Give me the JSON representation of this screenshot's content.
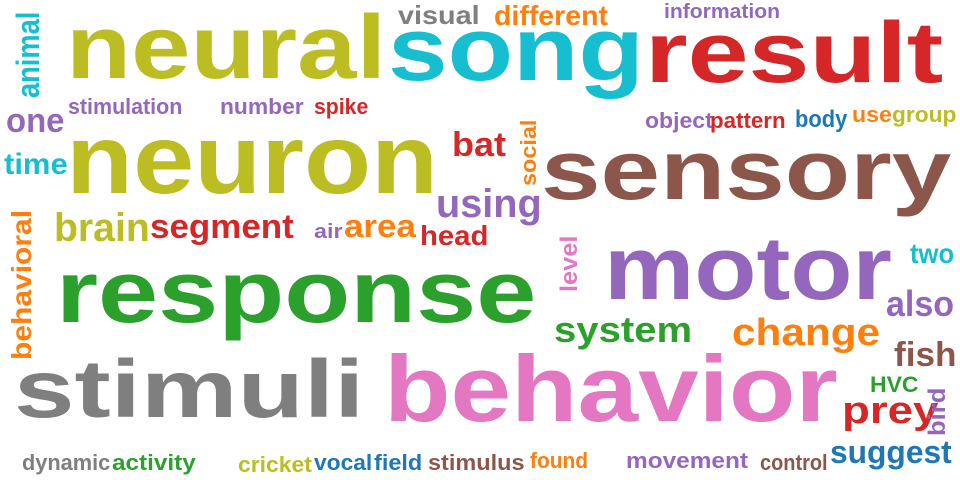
{
  "colors": {
    "olive": "#bcbd22",
    "cyan": "#17becf",
    "red": "#d62728",
    "brown": "#8c564b",
    "purple": "#9467bd",
    "green": "#2ca02c",
    "orange": "#ff7f0e",
    "gray": "#7f7f7f",
    "pink": "#e377c2",
    "blue": "#1f77b4"
  },
  "words": [
    {
      "key": "neural",
      "text": "neural",
      "color": "olive"
    },
    {
      "key": "song",
      "text": "song",
      "color": "cyan"
    },
    {
      "key": "result",
      "text": "result",
      "color": "red"
    },
    {
      "key": "neuron",
      "text": "neuron",
      "color": "olive"
    },
    {
      "key": "sensory",
      "text": "sensory",
      "color": "brown"
    },
    {
      "key": "motor",
      "text": "motor",
      "color": "purple"
    },
    {
      "key": "response",
      "text": "response",
      "color": "green"
    },
    {
      "key": "stimuli",
      "text": "stimuli",
      "color": "gray"
    },
    {
      "key": "behavior",
      "text": "behavior",
      "color": "pink"
    },
    {
      "key": "visual",
      "text": "visual",
      "color": "gray"
    },
    {
      "key": "different",
      "text": "different",
      "color": "orange"
    },
    {
      "key": "information",
      "text": "information",
      "color": "purple"
    },
    {
      "key": "animal",
      "text": "animal",
      "color": "cyan"
    },
    {
      "key": "one",
      "text": "one",
      "color": "purple"
    },
    {
      "key": "stimulation",
      "text": "stimulation",
      "color": "purple"
    },
    {
      "key": "number",
      "text": "number",
      "color": "purple"
    },
    {
      "key": "spike",
      "text": "spike",
      "color": "red"
    },
    {
      "key": "object",
      "text": "object",
      "color": "purple"
    },
    {
      "key": "pattern",
      "text": "pattern",
      "color": "red"
    },
    {
      "key": "body",
      "text": "body",
      "color": "blue"
    },
    {
      "key": "use",
      "text": "use",
      "color": "orange"
    },
    {
      "key": "group",
      "text": "group",
      "color": "olive"
    },
    {
      "key": "time",
      "text": "time",
      "color": "cyan"
    },
    {
      "key": "bat",
      "text": "bat",
      "color": "red"
    },
    {
      "key": "social",
      "text": "social",
      "color": "orange"
    },
    {
      "key": "using",
      "text": "using",
      "color": "purple"
    },
    {
      "key": "brain",
      "text": "brain",
      "color": "olive"
    },
    {
      "key": "segment",
      "text": "segment",
      "color": "red"
    },
    {
      "key": "air",
      "text": "air",
      "color": "purple"
    },
    {
      "key": "area",
      "text": "area",
      "color": "orange"
    },
    {
      "key": "head",
      "text": "head",
      "color": "red"
    },
    {
      "key": "behavioral",
      "text": "behavioral",
      "color": "orange"
    },
    {
      "key": "level",
      "text": "level",
      "color": "pink"
    },
    {
      "key": "two",
      "text": "two",
      "color": "cyan"
    },
    {
      "key": "also",
      "text": "also",
      "color": "purple"
    },
    {
      "key": "system",
      "text": "system",
      "color": "green"
    },
    {
      "key": "change",
      "text": "change",
      "color": "orange"
    },
    {
      "key": "fish",
      "text": "fish",
      "color": "brown"
    },
    {
      "key": "HVC",
      "text": "HVC",
      "color": "green"
    },
    {
      "key": "prey",
      "text": "prey",
      "color": "red"
    },
    {
      "key": "bird",
      "text": "bird",
      "color": "purple"
    },
    {
      "key": "suggest",
      "text": "suggest",
      "color": "blue"
    },
    {
      "key": "dynamic",
      "text": "dynamic",
      "color": "gray"
    },
    {
      "key": "activity",
      "text": "activity",
      "color": "green"
    },
    {
      "key": "cricket",
      "text": "cricket",
      "color": "olive"
    },
    {
      "key": "vocal",
      "text": "vocal",
      "color": "blue"
    },
    {
      "key": "field",
      "text": "field",
      "color": "blue"
    },
    {
      "key": "stimulus",
      "text": "stimulus",
      "color": "brown"
    },
    {
      "key": "found",
      "text": "found",
      "color": "orange"
    },
    {
      "key": "movement",
      "text": "movement",
      "color": "purple"
    },
    {
      "key": "control",
      "text": "control",
      "color": "brown"
    }
  ]
}
